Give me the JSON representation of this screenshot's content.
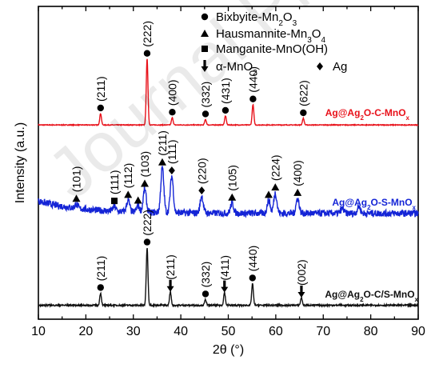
{
  "chart_data": {
    "type": "line",
    "xlabel_text": "2θ (°)",
    "ylabel": "Intensity (a.u.)",
    "xlim": [
      10,
      90
    ],
    "xticks": [
      10,
      20,
      30,
      40,
      50,
      60,
      70,
      80,
      90
    ],
    "legend": {
      "placement": "top-right",
      "entries": [
        {
          "marker": "circle",
          "label": "Bixbyite-Mn2O3",
          "parts": [
            [
              "Bixbyite-Mn",
              ""
            ],
            [
              "2",
              "sub"
            ],
            [
              "O",
              ""
            ],
            [
              "3",
              "sub"
            ]
          ]
        },
        {
          "marker": "triangle",
          "label": "Hausmannite-Mn3O4",
          "parts": [
            [
              "Hausmannite-Mn",
              ""
            ],
            [
              "3",
              "sub"
            ],
            [
              "O",
              ""
            ],
            [
              "4",
              "sub"
            ]
          ]
        },
        {
          "marker": "square",
          "label": "Manganite-MnO(OH)",
          "parts": [
            [
              "Manganite-MnO(OH)",
              ""
            ]
          ]
        },
        {
          "marker": "arrow",
          "label": "α-MnO2",
          "parts": [
            [
              "α-MnO",
              ""
            ],
            [
              "2",
              "sub"
            ]
          ]
        },
        {
          "marker": "diamond",
          "label": "Ag",
          "parts": [
            [
              "Ag",
              ""
            ]
          ]
        }
      ]
    },
    "series": [
      {
        "name": "Ag@Ag2O-C-MnOx",
        "name_parts": [
          [
            "Ag@Ag",
            ""
          ],
          [
            "2",
            "sub"
          ],
          [
            "O-C-MnO",
            ""
          ],
          [
            "x",
            "sub"
          ]
        ],
        "color": "#e8111a",
        "baseline": 0.12,
        "noise": 0.006,
        "peaks": [
          [
            23.1,
            0.95
          ],
          [
            32.9,
            5.5
          ],
          [
            38.2,
            0.6
          ],
          [
            45.2,
            0.45
          ],
          [
            49.4,
            0.75
          ],
          [
            55.2,
            1.7
          ],
          [
            65.8,
            0.55
          ]
        ],
        "annotations": [
          {
            "x": 23.1,
            "label": "(211)",
            "marker": "circle"
          },
          {
            "x": 32.9,
            "label": "(222)",
            "marker": "circle"
          },
          {
            "x": 38.2,
            "label": "(400)",
            "marker": "circle"
          },
          {
            "x": 45.2,
            "label": "(332)",
            "marker": "circle"
          },
          {
            "x": 49.4,
            "label": "(431)",
            "marker": "circle"
          },
          {
            "x": 55.2,
            "label": "(440)",
            "marker": "circle"
          },
          {
            "x": 65.8,
            "label": "(622)",
            "marker": "circle"
          }
        ]
      },
      {
        "name": "Ag@Ag2O-S-MnOx",
        "name_parts": [
          [
            "Ag@Ag",
            ""
          ],
          [
            "2",
            "sub"
          ],
          [
            "O-S-MnO",
            ""
          ],
          [
            "x",
            "sub"
          ]
        ],
        "color": "#1424d6",
        "baseline": 0.55,
        "noise": 0.05,
        "peaks": [
          [
            18.0,
            0.3
          ],
          [
            26.0,
            0.35
          ],
          [
            28.9,
            0.85
          ],
          [
            31.0,
            0.45
          ],
          [
            32.4,
            1.7
          ],
          [
            36.1,
            3.3
          ],
          [
            38.1,
            2.7
          ],
          [
            44.4,
            1.25
          ],
          [
            50.8,
            0.75
          ],
          [
            58.5,
            0.95
          ],
          [
            59.9,
            1.5
          ],
          [
            64.6,
            1.1
          ],
          [
            74.0,
            0.35
          ],
          [
            77.5,
            0.5
          ]
        ],
        "annotations": [
          {
            "x": 18.0,
            "label": "(101)",
            "marker": "triangle"
          },
          {
            "x": 26.0,
            "label": "(111)",
            "marker": "square"
          },
          {
            "x": 28.9,
            "label": "(112)",
            "marker": "triangle"
          },
          {
            "x": 31.0,
            "label": "",
            "marker": "triangle"
          },
          {
            "x": 32.4,
            "label": "(103)",
            "marker": "triangle"
          },
          {
            "x": 36.1,
            "label": "(211)",
            "marker": "triangle"
          },
          {
            "x": 38.1,
            "label": "(111)",
            "marker": "diamond"
          },
          {
            "x": 44.4,
            "label": "(220)",
            "marker": "diamond"
          },
          {
            "x": 50.8,
            "label": "(105)",
            "marker": "triangle"
          },
          {
            "x": 58.5,
            "label": "",
            "marker": "triangle"
          },
          {
            "x": 59.9,
            "label": "(224)",
            "marker": "triangle"
          },
          {
            "x": 64.6,
            "label": "(400)",
            "marker": "triangle"
          }
        ]
      },
      {
        "name": "Ag@Ag2O-C/S-MnOx",
        "name_parts": [
          [
            "Ag@Ag",
            ""
          ],
          [
            "2",
            "sub"
          ],
          [
            "O-C/S-MnO",
            ""
          ],
          [
            "x",
            "sub"
          ]
        ],
        "color": "#111111",
        "baseline": 0.15,
        "noise": 0.012,
        "peaks": [
          [
            23.1,
            0.95
          ],
          [
            32.9,
            4.5
          ],
          [
            37.8,
            1.05
          ],
          [
            45.2,
            0.45
          ],
          [
            49.2,
            1.0
          ],
          [
            55.1,
            1.7
          ],
          [
            65.4,
            0.6
          ]
        ],
        "annotations": [
          {
            "x": 23.1,
            "label": "(211)",
            "marker": "circle"
          },
          {
            "x": 32.9,
            "label": "(222)",
            "marker": "circle"
          },
          {
            "x": 37.8,
            "label": "(211)",
            "marker": "arrow"
          },
          {
            "x": 45.2,
            "label": "(332)",
            "marker": "circle"
          },
          {
            "x": 49.2,
            "label": "(411)",
            "marker": "arrow"
          },
          {
            "x": 55.1,
            "label": "(440)",
            "marker": "circle"
          },
          {
            "x": 65.4,
            "label": "(002)",
            "marker": "arrow"
          }
        ]
      }
    ],
    "watermark": "Journal Pre-proof"
  }
}
